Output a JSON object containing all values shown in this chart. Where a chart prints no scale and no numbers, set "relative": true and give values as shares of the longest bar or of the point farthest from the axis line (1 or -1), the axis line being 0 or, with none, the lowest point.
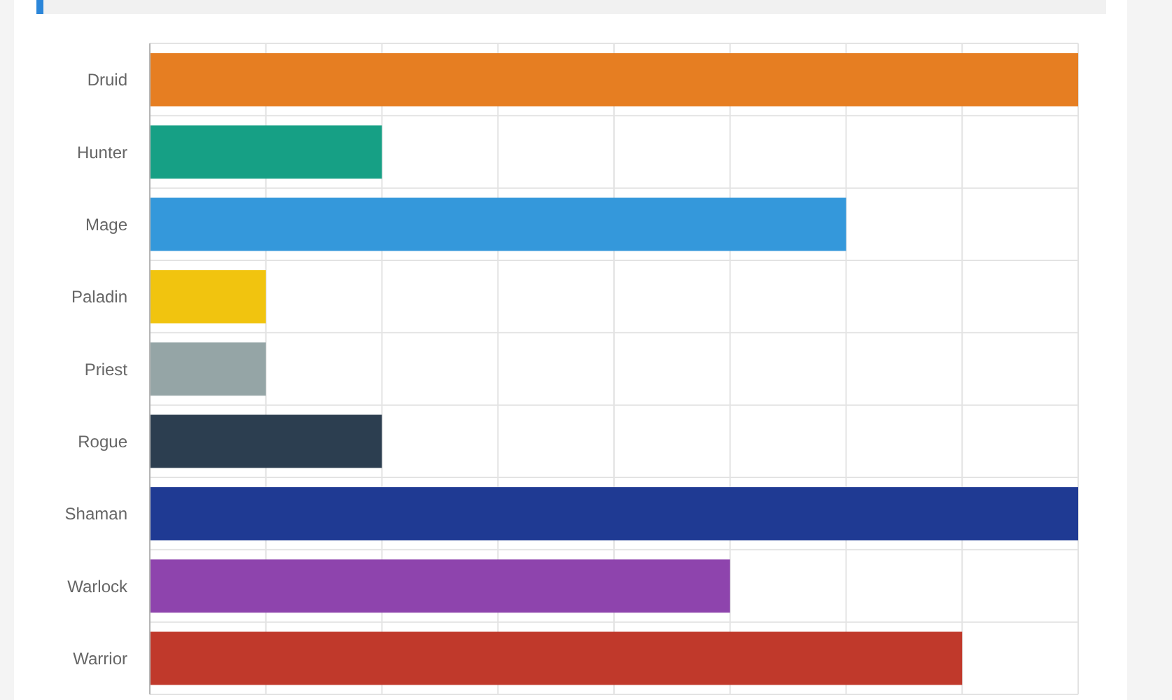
{
  "chart_data": {
    "type": "bar",
    "orientation": "horizontal",
    "relative": true,
    "categories": [
      "Druid",
      "Hunter",
      "Mage",
      "Paladin",
      "Priest",
      "Rogue",
      "Shaman",
      "Warlock",
      "Warrior"
    ],
    "values": [
      1,
      0.25,
      0.75,
      0.125,
      0.125,
      0.25,
      1,
      0.625,
      0.875
    ],
    "colors": [
      "#e67e22",
      "#16a085",
      "#3498db",
      "#f1c40f",
      "#95a5a6",
      "#2c3e50",
      "#1f3a93",
      "#8e44ad",
      "#c0392b"
    ],
    "grid": true,
    "tick_labels": "y"
  }
}
